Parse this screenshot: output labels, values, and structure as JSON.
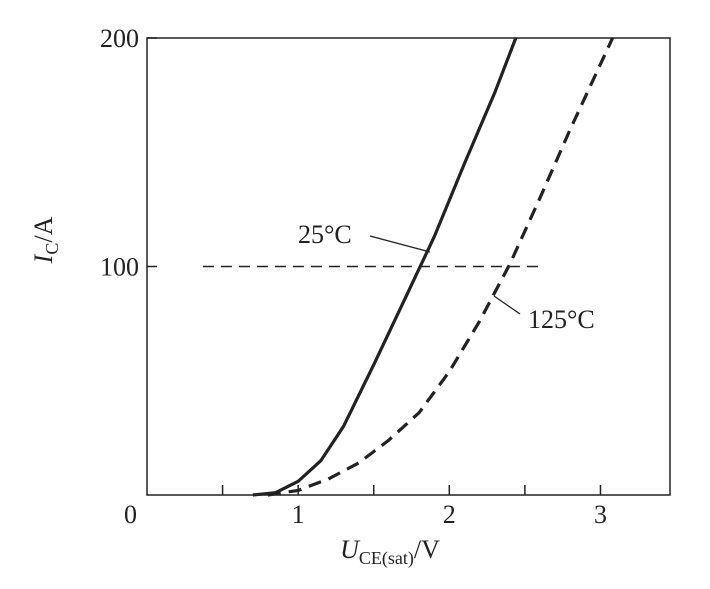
{
  "chart_data": {
    "type": "line",
    "ylabel": [
      "I",
      "C",
      "/A"
    ],
    "xlabel": [
      "U",
      "CE(sat)",
      "/V"
    ],
    "xlim": [
      0,
      3.46
    ],
    "ylim": [
      0,
      200
    ],
    "xticks": [
      1,
      2,
      3
    ],
    "xminor_ticks": [
      0.5,
      1.5,
      2.5
    ],
    "yticks": [
      0,
      100,
      200
    ],
    "reference_line": {
      "y": 100,
      "x": [
        0.37,
        2.6
      ]
    },
    "series": [
      {
        "name": "25°C",
        "color": "#222222",
        "style": "solid",
        "x": [
          0.7,
          0.85,
          1.0,
          1.15,
          1.3,
          1.5,
          1.7,
          1.9,
          2.1,
          2.3,
          2.44
        ],
        "values": [
          0,
          1,
          6,
          15,
          30,
          57,
          85,
          113,
          145,
          176,
          200
        ]
      },
      {
        "name": "125°C",
        "color": "#222222",
        "style": "dashed",
        "x": [
          0.8,
          1.0,
          1.2,
          1.4,
          1.6,
          1.8,
          2.0,
          2.2,
          2.4,
          2.6,
          2.8,
          3.08
        ],
        "values": [
          0,
          2,
          7,
          14,
          24,
          36,
          54,
          76,
          101,
          130,
          160,
          200
        ]
      }
    ]
  }
}
